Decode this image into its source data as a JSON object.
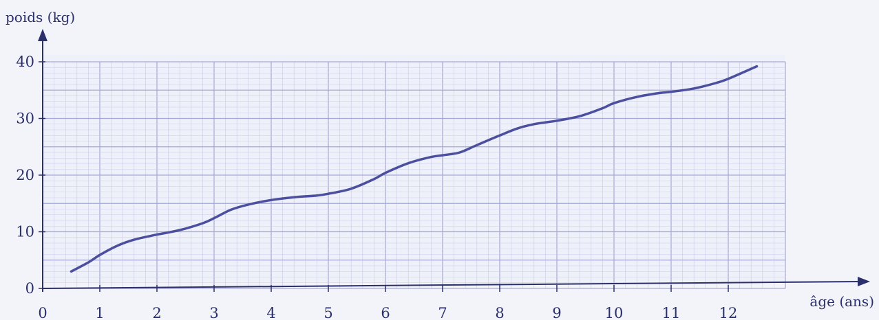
{
  "chart_data": {
    "type": "line",
    "title": "",
    "xlabel": "âge (ans)",
    "ylabel": "poids (kg)",
    "xlim": [
      0,
      13
    ],
    "ylim": [
      0,
      40
    ],
    "x_ticks": [
      "0",
      "1",
      "2",
      "3",
      "4",
      "5",
      "6",
      "7",
      "8",
      "9",
      "10",
      "11",
      "12"
    ],
    "y_ticks": [
      "0",
      "10",
      "20",
      "30",
      "40"
    ],
    "grid": true,
    "legend": "none",
    "colors": {
      "line": "#4c4f9e",
      "grid_minor": "#c9cbe7",
      "grid_major": "#a5a8d6",
      "axis": "#2b2f6b",
      "background": "#eef0fa"
    },
    "series": [
      {
        "x": [
          0.5,
          0.8,
          1.0,
          1.3,
          1.6,
          2.0,
          2.4,
          2.8,
          3.0,
          3.3,
          3.6,
          4.0,
          4.4,
          4.8,
          5.0,
          5.4,
          5.8,
          6.0,
          6.4,
          6.8,
          7.0,
          7.3,
          7.6,
          8.0,
          8.3,
          8.6,
          9.0,
          9.4,
          9.8,
          10.0,
          10.4,
          10.8,
          11.0,
          11.4,
          11.8,
          12.0,
          12.5
        ],
        "values": [
          3.0,
          4.6,
          5.9,
          7.5,
          8.6,
          9.5,
          10.3,
          11.5,
          12.4,
          13.9,
          14.8,
          15.6,
          16.1,
          16.4,
          16.7,
          17.6,
          19.3,
          20.4,
          22.1,
          23.2,
          23.5,
          24.0,
          25.3,
          27.0,
          28.2,
          29.0,
          29.6,
          30.4,
          31.8,
          32.7,
          33.8,
          34.5,
          34.7,
          35.3,
          36.3,
          37.0,
          39.2
        ]
      }
    ]
  }
}
